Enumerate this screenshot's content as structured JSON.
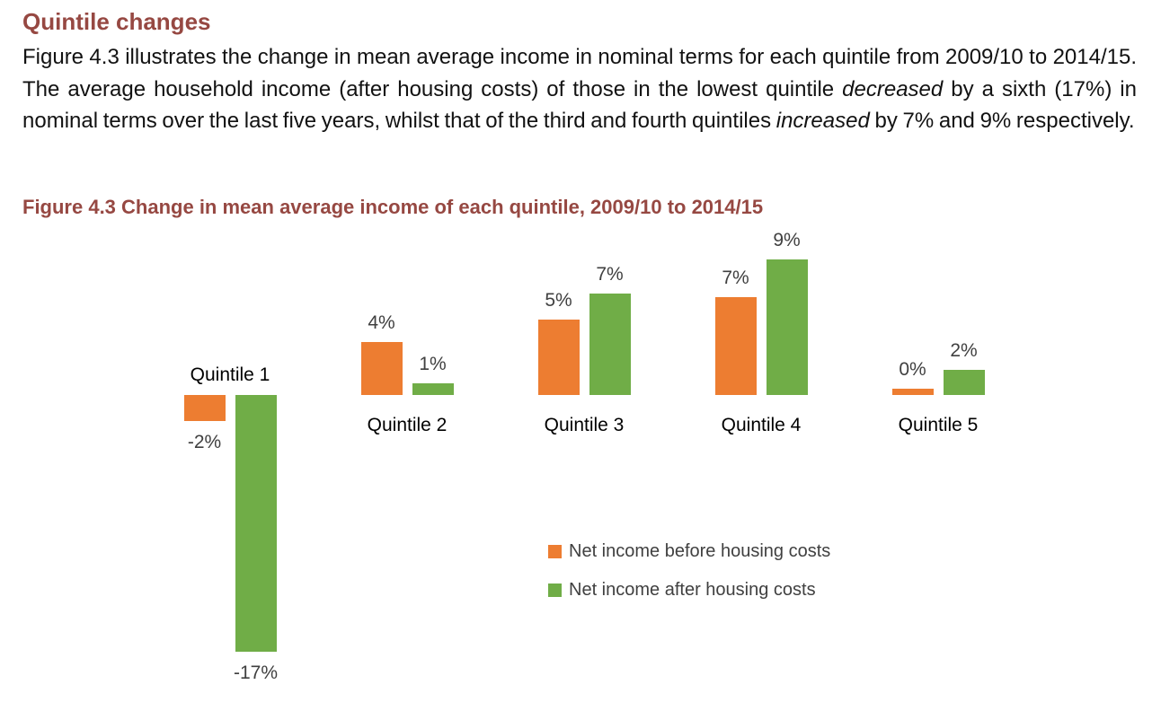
{
  "document": {
    "heading": "Quintile changes",
    "paragraph_segments": [
      {
        "text": "Figure 4.3 illustrates the change in mean average income in nominal terms for each quintile from 2009/10 to 2014/15. The average household income (after housing costs) of those in the lowest quintile ",
        "italic": false
      },
      {
        "text": "decreased",
        "italic": true
      },
      {
        "text": " by a sixth (17%) in nominal terms over the last five years, whilst that of the third and fourth quintiles ",
        "italic": false
      },
      {
        "text": "increased",
        "italic": true
      },
      {
        "text": " by 7% and 9% respectively.",
        "italic": false
      }
    ],
    "figure_caption": "Figure 4.3 Change in mean average income of each quintile, 2009/10 to 2014/15"
  },
  "colors": {
    "heading_maroon": "#964842",
    "before_housing_orange": "#ED7D31",
    "after_housing_green": "#70AD47",
    "chart_text_gray": "#404040",
    "category_text_black": "#000000"
  },
  "chart_data": {
    "type": "bar",
    "title": "Figure 4.3 Change in mean average income of each quintile, 2009/10 to 2014/15",
    "categories": [
      "Quintile 1",
      "Quintile 2",
      "Quintile 3",
      "Quintile 4",
      "Quintile 5"
    ],
    "series": [
      {
        "name": "Net income before housing costs",
        "color": "#ED7D31",
        "values": [
          -2,
          4,
          5,
          7,
          0
        ],
        "labels": [
          "-2%",
          "4%",
          "5%",
          "7%",
          "0%"
        ],
        "render_values": [
          -1.7,
          3.5,
          5.0,
          6.5,
          0.4
        ]
      },
      {
        "name": "Net income after housing costs",
        "color": "#70AD47",
        "values": [
          -17,
          1,
          7,
          9,
          2
        ],
        "labels": [
          "-17%",
          "1%",
          "7%",
          "9%",
          "2%"
        ],
        "render_values": [
          -17.0,
          0.75,
          6.7,
          9.0,
          1.65
        ]
      }
    ],
    "value_format": "percent",
    "ylim": [
      -17,
      9
    ],
    "axis_visible": false,
    "gridlines": false,
    "data_labels": true,
    "legend_position": "below-center-right"
  }
}
